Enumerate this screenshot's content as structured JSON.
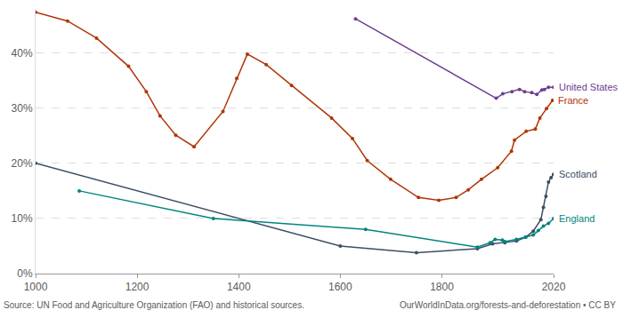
{
  "chart_data": {
    "type": "line",
    "source": "Source: UN Food and Agriculture Organization (FAO) and historical sources.",
    "credit": "OurWorldInData.org/forests-and-deforestation • CC BY",
    "xlim": [
      1000,
      2020
    ],
    "xticks": [
      1000,
      1200,
      1400,
      1600,
      1800,
      2020
    ],
    "ylim": [
      0,
      48
    ],
    "yticks": [
      {
        "value": 0,
        "label": "0%"
      },
      {
        "value": 10,
        "label": "10%"
      },
      {
        "value": 20,
        "label": "20%"
      },
      {
        "value": 30,
        "label": "30%"
      },
      {
        "value": 40,
        "label": "40%"
      }
    ],
    "grid": true,
    "marker": "circle",
    "series": [
      {
        "name": "United States",
        "color": "#6d3e91",
        "x": [
          1630,
          1907,
          1920,
          1938,
          1953,
          1963,
          1977,
          1987,
          1997,
          2002,
          2010,
          2020
        ],
        "values": [
          46.2,
          31.8,
          32.6,
          33.0,
          33.4,
          33.0,
          32.8,
          32.5,
          33.3,
          33.4,
          33.8,
          33.8
        ]
      },
      {
        "name": "France",
        "color": "#b13507",
        "x": [
          1000,
          1063,
          1120,
          1183,
          1218,
          1245,
          1276,
          1312,
          1369,
          1396,
          1417,
          1454,
          1504,
          1583,
          1624,
          1653,
          1699,
          1754,
          1794,
          1828,
          1852,
          1878,
          1910,
          1937,
          1943,
          1966,
          1984,
          1993,
          2006,
          2018
        ],
        "values": [
          47.4,
          45.8,
          42.7,
          37.6,
          33.0,
          28.6,
          25.1,
          23.0,
          29.4,
          35.4,
          39.8,
          37.9,
          34.1,
          28.2,
          24.5,
          20.5,
          17.1,
          13.8,
          13.3,
          13.8,
          15.2,
          17.1,
          19.2,
          22.2,
          24.2,
          25.8,
          26.2,
          28.2,
          29.9,
          31.4
        ]
      },
      {
        "name": "Scotland",
        "color": "#3c4e66",
        "x": [
          1000,
          1600,
          1750,
          1870,
          1900,
          1924,
          1947,
          1965,
          1980,
          1995,
          2000,
          2005,
          2010,
          2015,
          2020
        ],
        "values": [
          20.0,
          5.0,
          3.8,
          4.5,
          5.4,
          5.6,
          5.9,
          6.6,
          7.7,
          9.8,
          12.0,
          14.0,
          16.6,
          17.4,
          18.0
        ]
      },
      {
        "name": "England",
        "color": "#00847e",
        "x": [
          1086,
          1350,
          1650,
          1870,
          1895,
          1905,
          1919,
          1924,
          1947,
          1965,
          1980,
          1990,
          2000,
          2010,
          2020
        ],
        "values": [
          15.0,
          10.0,
          8.0,
          4.8,
          5.6,
          6.2,
          6.1,
          5.8,
          6.2,
          6.6,
          7.0,
          7.8,
          8.6,
          9.1,
          10.0
        ]
      }
    ]
  }
}
